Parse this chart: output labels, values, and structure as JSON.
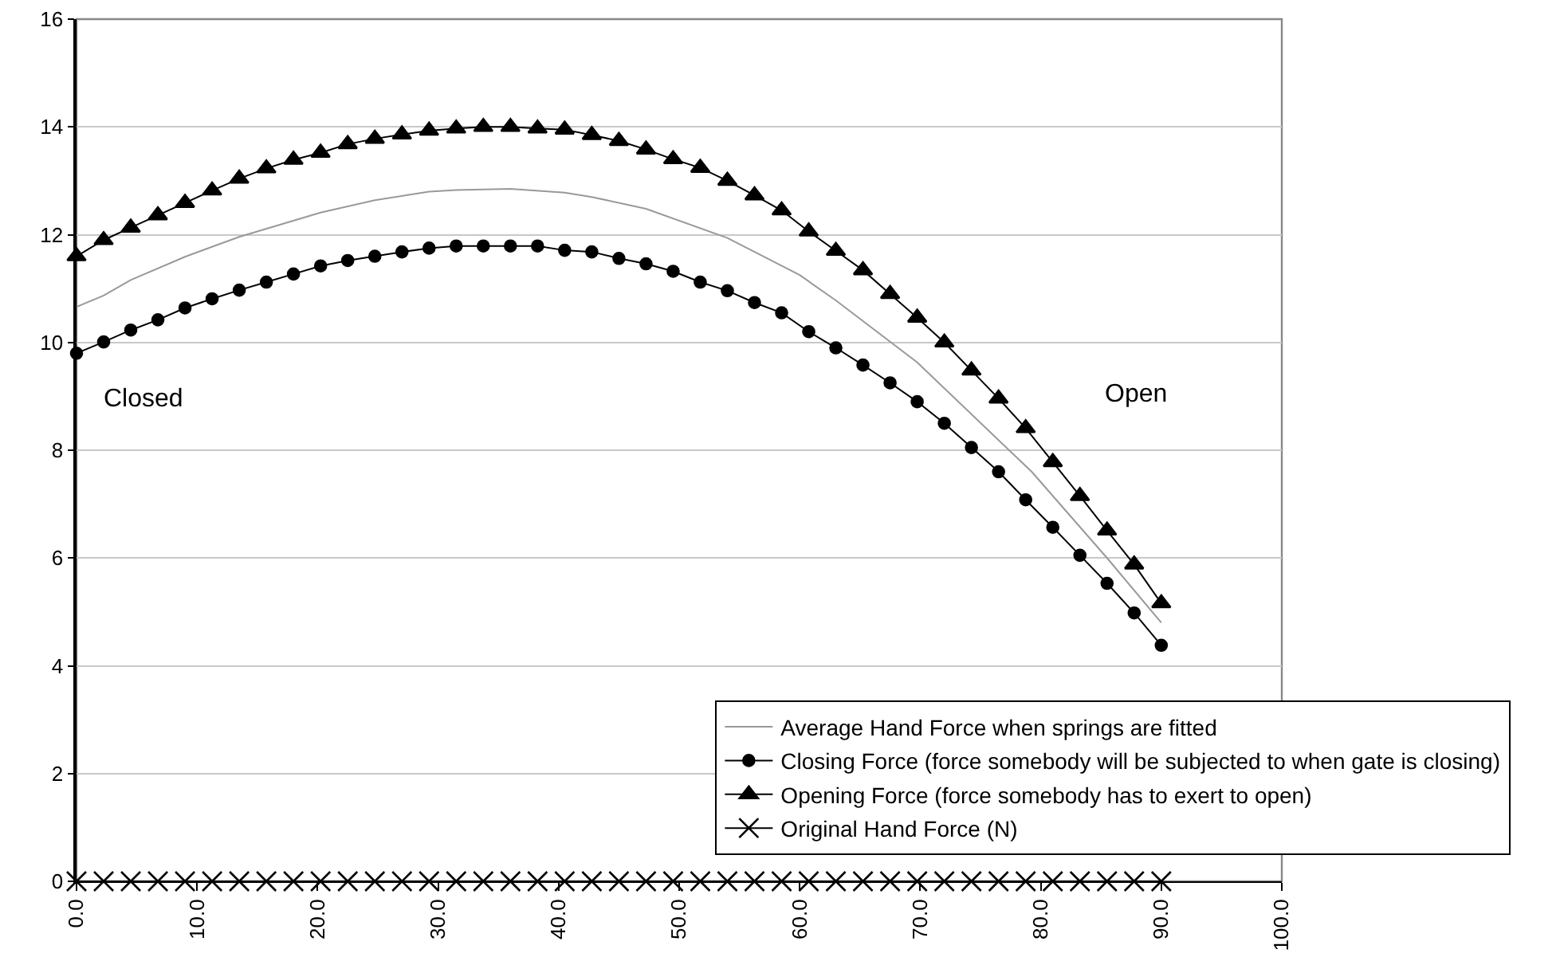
{
  "chart_data": {
    "type": "line",
    "xlim": [
      0,
      100
    ],
    "xticks": [
      {
        "value": 0,
        "label": "0.0"
      },
      {
        "value": 10,
        "label": "10.0"
      },
      {
        "value": 20,
        "label": "20.0"
      },
      {
        "value": 30,
        "label": "30.0"
      },
      {
        "value": 40,
        "label": "40.0"
      },
      {
        "value": 50,
        "label": "50.0"
      },
      {
        "value": 60,
        "label": "60.0"
      },
      {
        "value": 70,
        "label": "70.0"
      },
      {
        "value": 80,
        "label": "80.0"
      },
      {
        "value": 90,
        "label": "90.0"
      },
      {
        "value": 100,
        "label": "100.0"
      }
    ],
    "ylim": [
      0,
      16
    ],
    "yticks": [
      0,
      2,
      4,
      6,
      8,
      10,
      12,
      14,
      16
    ],
    "x": [
      0,
      2.25,
      4.5,
      6.75,
      9,
      11.25,
      13.5,
      15.75,
      18,
      20.25,
      22.5,
      24.75,
      27,
      29.25,
      31.5,
      33.75,
      36,
      38.25,
      40.5,
      42.75,
      45,
      47.25,
      49.5,
      51.75,
      54,
      56.25,
      58.5,
      60.75,
      63,
      65.25,
      67.5,
      69.75,
      72,
      74.25,
      76.5,
      78.75,
      81,
      83.25,
      85.5,
      87.75,
      90
    ],
    "series": [
      {
        "name": "Average Hand Force when springs are fitted",
        "color": "#999999",
        "marker": "none",
        "x": [
          0,
          2.25,
          4.5,
          9,
          13.5,
          20.25,
          24.75,
          29.25,
          31.5,
          36,
          40.5,
          42.75,
          47.25,
          54,
          60,
          63,
          69.75,
          79.25,
          85.5,
          90
        ],
        "values": [
          10.66,
          10.87,
          11.16,
          11.59,
          11.96,
          12.41,
          12.64,
          12.8,
          12.83,
          12.85,
          12.78,
          12.7,
          12.48,
          11.94,
          11.25,
          10.78,
          9.63,
          7.6,
          6.0,
          4.8
        ]
      },
      {
        "name": "Closing Force (force somebody will be subjected to when gate is closing)",
        "color": "#000000",
        "marker": "circle",
        "values": [
          9.8,
          10.01,
          10.23,
          10.42,
          10.64,
          10.81,
          10.97,
          11.12,
          11.27,
          11.42,
          11.52,
          11.6,
          11.68,
          11.75,
          11.79,
          11.79,
          11.79,
          11.79,
          11.71,
          11.68,
          11.56,
          11.46,
          11.32,
          11.12,
          10.96,
          10.74,
          10.55,
          10.2,
          9.9,
          9.58,
          9.25,
          8.9,
          8.5,
          8.05,
          7.6,
          7.08,
          6.57,
          6.05,
          5.53,
          4.98,
          4.38
        ]
      },
      {
        "name": "Opening Force (force somebody has to exert to open)",
        "color": "#000000",
        "marker": "triangle",
        "values": [
          11.6,
          11.9,
          12.13,
          12.36,
          12.59,
          12.82,
          13.04,
          13.23,
          13.39,
          13.52,
          13.68,
          13.78,
          13.86,
          13.93,
          13.97,
          14.0,
          14.0,
          13.97,
          13.95,
          13.85,
          13.74,
          13.58,
          13.4,
          13.24,
          13.0,
          12.73,
          12.45,
          12.06,
          11.7,
          11.34,
          10.9,
          10.46,
          10.0,
          9.48,
          8.96,
          8.41,
          7.78,
          7.15,
          6.51,
          5.88,
          5.16
        ]
      },
      {
        "name": "Original Hand Force (N)",
        "color": "#000000",
        "marker": "cross",
        "values": [
          0,
          0,
          0,
          0,
          0,
          0,
          0,
          0,
          0,
          0,
          0,
          0,
          0,
          0,
          0,
          0,
          0,
          0,
          0,
          0,
          0,
          0,
          0,
          0,
          0,
          0,
          0,
          0,
          0,
          0,
          0,
          0,
          0,
          0,
          0,
          0,
          0,
          0,
          0,
          0,
          0
        ]
      }
    ],
    "annotations": [
      "Closed",
      "Open"
    ],
    "grid": "y",
    "legend": "bottom right",
    "line_style": "solid"
  }
}
